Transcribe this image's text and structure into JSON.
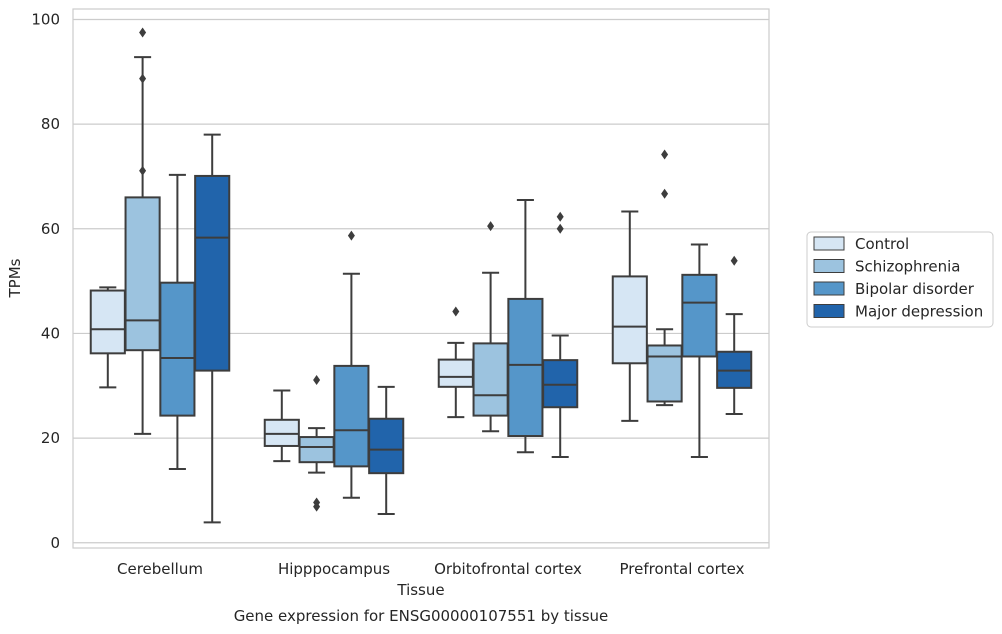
{
  "chart_data": {
    "type": "box",
    "title": "Gene expression for ENSG00000107551 by tissue",
    "xlabel": "Tissue",
    "ylabel": "TPMs",
    "ylim": [
      -1,
      102
    ],
    "yticks": [
      0,
      20,
      40,
      60,
      80,
      100
    ],
    "grid": true,
    "legend_position": "right",
    "categories": [
      "Cerebellum",
      "Hipppocampus",
      "Orbitofrontal cortex",
      "Prefrontal cortex"
    ],
    "series": [
      {
        "name": "Control",
        "color": "#d6e6f4",
        "boxes": [
          {
            "whislo": 29.7,
            "q1": 36.2,
            "med": 40.8,
            "q3": 48.2,
            "whishi": 48.8,
            "fliers": []
          },
          {
            "whislo": 15.6,
            "q1": 18.5,
            "med": 20.8,
            "q3": 23.5,
            "whishi": 29.1,
            "fliers": []
          },
          {
            "whislo": 24.0,
            "q1": 29.8,
            "med": 31.7,
            "q3": 35.0,
            "whishi": 38.2,
            "fliers": [
              44.2
            ]
          },
          {
            "whislo": 23.3,
            "q1": 34.3,
            "med": 41.3,
            "q3": 50.9,
            "whishi": 63.3,
            "fliers": []
          }
        ]
      },
      {
        "name": "Schizophrenia",
        "color": "#9cc3df",
        "boxes": [
          {
            "whislo": 20.8,
            "q1": 36.8,
            "med": 42.5,
            "q3": 66.0,
            "whishi": 92.8,
            "fliers": [
              71.1,
              88.7,
              97.5
            ]
          },
          {
            "whislo": 13.4,
            "q1": 15.4,
            "med": 18.3,
            "q3": 20.2,
            "whishi": 21.9,
            "fliers": [
              31.1,
              7.7,
              6.9
            ]
          },
          {
            "whislo": 21.3,
            "q1": 24.3,
            "med": 28.2,
            "q3": 38.1,
            "whishi": 51.6,
            "fliers": [
              60.5
            ]
          },
          {
            "whislo": 26.3,
            "q1": 27.0,
            "med": 35.6,
            "q3": 37.7,
            "whishi": 40.8,
            "fliers": [
              66.7,
              74.2
            ]
          }
        ]
      },
      {
        "name": "Bipolar disorder",
        "color": "#5596c9",
        "boxes": [
          {
            "whislo": 14.1,
            "q1": 24.3,
            "med": 35.3,
            "q3": 49.7,
            "whishi": 70.3,
            "fliers": []
          },
          {
            "whislo": 8.6,
            "q1": 14.6,
            "med": 21.5,
            "q3": 33.8,
            "whishi": 51.4,
            "fliers": [
              58.7
            ]
          },
          {
            "whislo": 17.3,
            "q1": 20.4,
            "med": 34.0,
            "q3": 46.6,
            "whishi": 65.5,
            "fliers": []
          },
          {
            "whislo": 16.4,
            "q1": 35.6,
            "med": 45.9,
            "q3": 51.2,
            "whishi": 57.0,
            "fliers": []
          }
        ]
      },
      {
        "name": "Major depression",
        "color": "#2164ab",
        "boxes": [
          {
            "whislo": 3.9,
            "q1": 32.9,
            "med": 58.3,
            "q3": 70.1,
            "whishi": 78.0,
            "fliers": []
          },
          {
            "whislo": 5.5,
            "q1": 13.3,
            "med": 17.8,
            "q3": 23.7,
            "whishi": 29.8,
            "fliers": []
          },
          {
            "whislo": 16.4,
            "q1": 25.9,
            "med": 30.2,
            "q3": 34.9,
            "whishi": 39.6,
            "fliers": [
              60.0,
              62.3
            ]
          },
          {
            "whislo": 24.6,
            "q1": 29.6,
            "med": 32.9,
            "q3": 36.5,
            "whishi": 43.7,
            "fliers": [
              53.9
            ]
          }
        ]
      }
    ]
  }
}
